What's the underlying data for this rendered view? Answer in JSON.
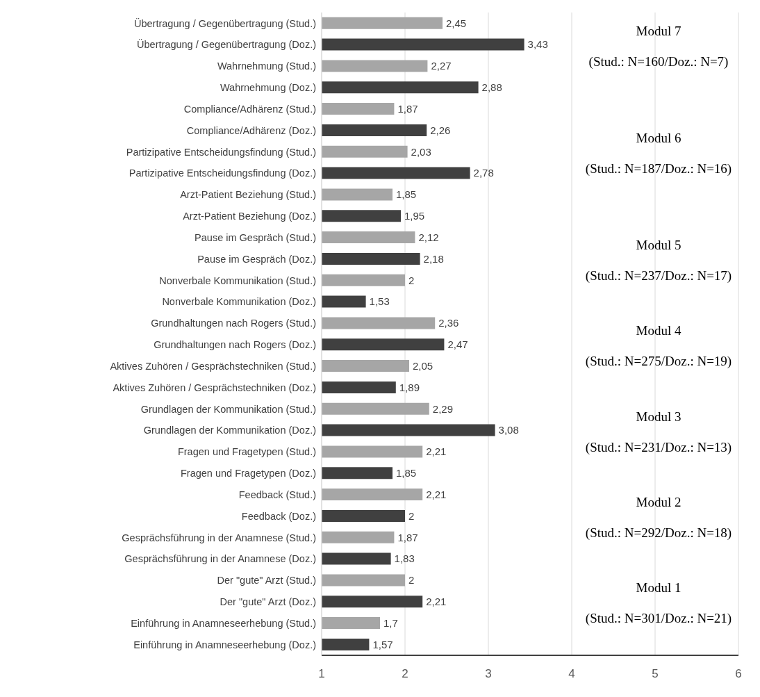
{
  "chart_data": {
    "type": "bar",
    "orientation": "horizontal",
    "categories": [
      "Übertragung / Gegenübertragung (Stud.)",
      "Übertragung / Gegenübertragung (Doz.)",
      "Wahrnehmung (Stud.)",
      "Wahrnehmung (Doz.)",
      "Compliance/Adhärenz (Stud.)",
      "Compliance/Adhärenz (Doz.)",
      "Partizipative Entscheidungsfindung (Stud.)",
      "Partizipative Entscheidungsfindung (Doz.)",
      "Arzt-Patient Beziehung (Stud.)",
      "Arzt-Patient Beziehung (Doz.)",
      "Pause im Gespräch (Stud.)",
      "Pause im Gespräch (Doz.)",
      "Nonverbale Kommunikation (Stud.)",
      "Nonverbale Kommunikation (Doz.)",
      "Grundhaltungen nach Rogers (Stud.)",
      "Grundhaltungen nach Rogers (Doz.)",
      "Aktives Zuhören / Gesprächstechniken (Stud.)",
      "Aktives Zuhören / Gesprächstechniken (Doz.)",
      "Grundlagen der Kommunikation (Stud.)",
      "Grundlagen der Kommunikation (Doz.)",
      "Fragen und Fragetypen (Stud.)",
      "Fragen und Fragetypen (Doz.)",
      "Feedback (Stud.)",
      "Feedback (Doz.)",
      "Gesprächsführung in der Anamnese (Stud.)",
      "Gesprächsführung in der Anamnese (Doz.)",
      "Der \"gute\" Arzt (Stud.)",
      "Der \"gute\" Arzt (Doz.)",
      "Einführung in Anamneseerhebung (Stud.)",
      "Einführung in Anamneseerhebung (Doz.)"
    ],
    "values": [
      2.45,
      3.43,
      2.27,
      2.88,
      1.87,
      2.26,
      2.03,
      2.78,
      1.85,
      1.95,
      2.12,
      2.18,
      2,
      1.53,
      2.36,
      2.47,
      2.05,
      1.89,
      2.29,
      3.08,
      2.21,
      1.85,
      2.21,
      2,
      1.87,
      1.83,
      2,
      2.21,
      1.7,
      1.57
    ],
    "value_labels": [
      "2,45",
      "3,43",
      "2,27",
      "2,88",
      "1,87",
      "2,26",
      "2,03",
      "2,78",
      "1,85",
      "1,95",
      "2,12",
      "2,18",
      "2",
      "1,53",
      "2,36",
      "2,47",
      "2,05",
      "1,89",
      "2,29",
      "3,08",
      "2,21",
      "1,85",
      "2,21",
      "2",
      "1,87",
      "1,83",
      "2",
      "2,21",
      "1,7",
      "1,57"
    ],
    "colors": [
      "#a6a6a6",
      "#404040",
      "#a6a6a6",
      "#404040",
      "#a6a6a6",
      "#404040",
      "#a6a6a6",
      "#404040",
      "#a6a6a6",
      "#404040",
      "#a6a6a6",
      "#404040",
      "#a6a6a6",
      "#404040",
      "#a6a6a6",
      "#404040",
      "#a6a6a6",
      "#404040",
      "#a6a6a6",
      "#404040",
      "#a6a6a6",
      "#404040",
      "#a6a6a6",
      "#404040",
      "#a6a6a6",
      "#404040",
      "#a6a6a6",
      "#404040",
      "#a6a6a6",
      "#404040"
    ],
    "xlim": [
      1,
      6
    ],
    "xticks": [
      1,
      2,
      3,
      4,
      5,
      6
    ],
    "grid": "x",
    "legend": false,
    "annotations": [
      "Modul 7",
      "(Stud.: N=160/Doz.: N=7)",
      "Modul 6",
      "(Stud.: N=187/Doz.: N=16)",
      "Modul 5",
      "(Stud.: N=237/Doz.: N=17)",
      "Modul 4",
      "(Stud.: N=275/Doz.: N=19)",
      "Modul 3",
      "(Stud.: N=231/Doz.: N=13)",
      "Modul 2",
      "(Stud.: N=292/Doz.: N=18)",
      "Modul 1",
      "(Stud.: N=301/Doz.: N=21)"
    ]
  }
}
